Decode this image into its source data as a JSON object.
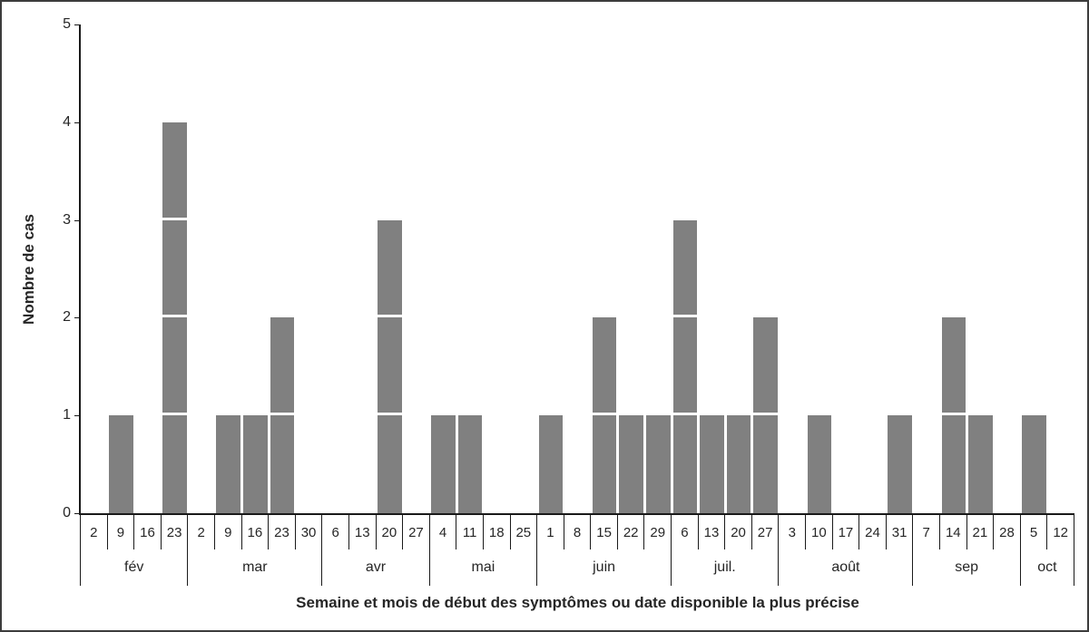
{
  "figure": {
    "background": "#ffffff",
    "border_color": "#3c3c3c"
  },
  "chart_data": {
    "type": "bar",
    "title": "",
    "ylabel": "Nombre de cas",
    "xlabel": "Semaine et mois de début des symptômes ou date disponible la plus précise",
    "ylim": [
      0,
      5
    ],
    "yticks": [
      "0",
      "1",
      "2",
      "3",
      "4",
      "5"
    ],
    "grid": false,
    "legend": false,
    "bar_color": "#808080",
    "unit_divider_color": "#ffffff",
    "axis_color": "#1a1a1a",
    "months": [
      {
        "label": "fév",
        "weeks": [
          "2",
          "9",
          "16",
          "23"
        ],
        "values": [
          0,
          1,
          0,
          4
        ]
      },
      {
        "label": "mar",
        "weeks": [
          "2",
          "9",
          "16",
          "23",
          "30"
        ],
        "values": [
          0,
          1,
          1,
          2,
          0
        ]
      },
      {
        "label": "avr",
        "weeks": [
          "6",
          "13",
          "20",
          "27"
        ],
        "values": [
          0,
          0,
          3,
          0
        ]
      },
      {
        "label": "mai",
        "weeks": [
          "4",
          "11",
          "18",
          "25"
        ],
        "values": [
          1,
          1,
          0,
          0
        ]
      },
      {
        "label": "juin",
        "weeks": [
          "1",
          "8",
          "15",
          "22",
          "29"
        ],
        "values": [
          1,
          0,
          2,
          1,
          1
        ]
      },
      {
        "label": "juil.",
        "weeks": [
          "6",
          "13",
          "20",
          "27"
        ],
        "values": [
          3,
          1,
          1,
          2
        ]
      },
      {
        "label": "août",
        "weeks": [
          "3",
          "10",
          "17",
          "24",
          "31"
        ],
        "values": [
          0,
          1,
          0,
          0,
          1
        ]
      },
      {
        "label": "sep",
        "weeks": [
          "7",
          "14",
          "21",
          "28"
        ],
        "values": [
          0,
          2,
          1,
          0
        ]
      },
      {
        "label": "oct",
        "weeks": [
          "5",
          "12"
        ],
        "values": [
          1,
          0
        ]
      }
    ]
  }
}
